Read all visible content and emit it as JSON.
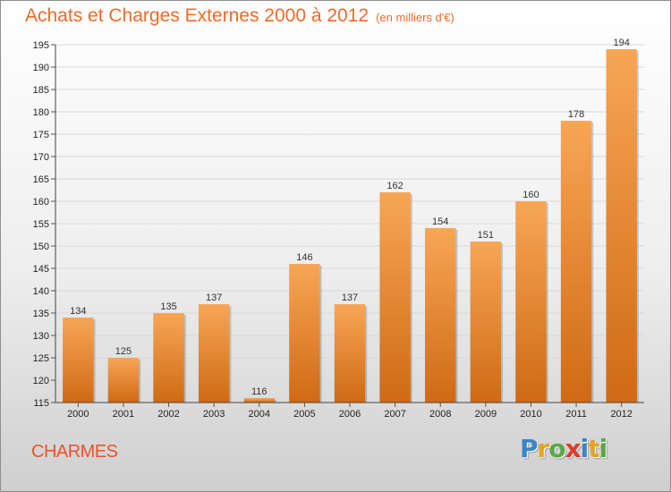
{
  "header": {
    "title": "Achats et Charges Externes 2000 à 2012",
    "subtitle": "(en milliers d'€)"
  },
  "footer": {
    "place": "CHARMES",
    "brand_letters": [
      "P",
      "r",
      "o",
      "x",
      "i",
      "t",
      "i"
    ],
    "brand_colors": [
      "#3a86c8",
      "#e5a324",
      "#5aa84a",
      "#e03b2f",
      "#3a86c8",
      "#e5a324",
      "#5aa84a"
    ]
  },
  "colors": {
    "bar_top": "#f7a656",
    "bar_bottom": "#cf6a15",
    "text_accent": "#ee6a2a",
    "grid": "#d9d9d9"
  },
  "chart_data": {
    "type": "bar",
    "title": "Achats et Charges Externes 2000 à 2012",
    "subtitle": "(en milliers d'€)",
    "categories": [
      "2000",
      "2001",
      "2002",
      "2003",
      "2004",
      "2005",
      "2006",
      "2007",
      "2008",
      "2009",
      "2010",
      "2011",
      "2012"
    ],
    "values": [
      134,
      125,
      135,
      137,
      116,
      146,
      137,
      162,
      154,
      151,
      160,
      178,
      194
    ],
    "ylim": [
      115,
      195
    ],
    "yticks": [
      115,
      120,
      125,
      130,
      135,
      140,
      145,
      150,
      155,
      160,
      165,
      170,
      175,
      180,
      185,
      190,
      195
    ],
    "grid": true,
    "data_labels": true
  }
}
